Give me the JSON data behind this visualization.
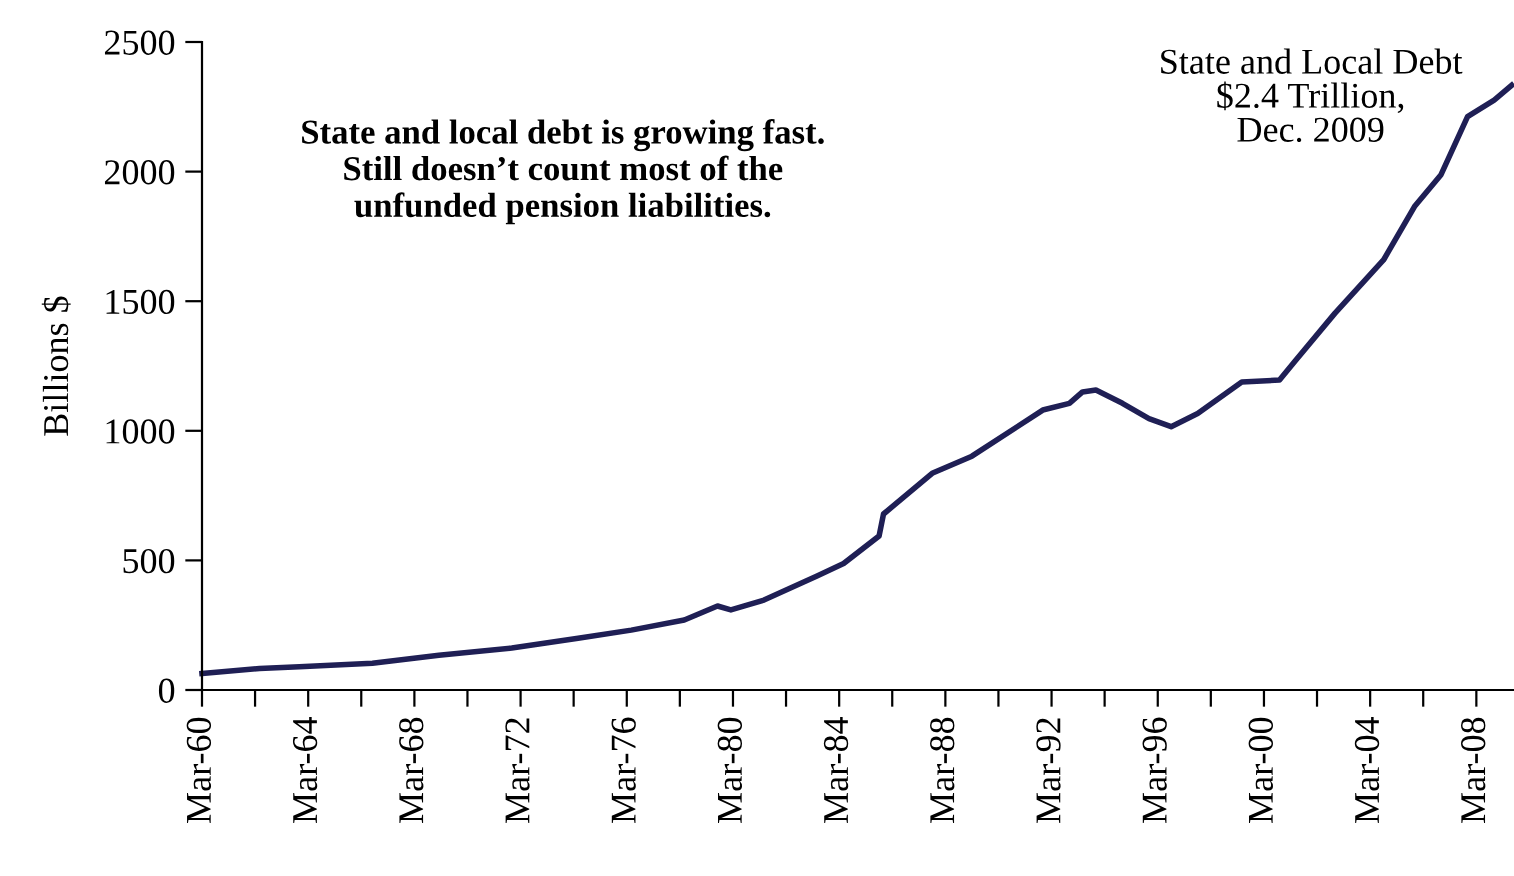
{
  "chart_data": {
    "type": "line",
    "ylabel": "Billions $",
    "annotations": [
      "State and local debt is growing fast.\nStill doesn’t count most of the\nunfunded pension liabilities.",
      "State and Local Debt\n$2.4 Trillion,\nDec. 2009"
    ],
    "x": [
      "1960-03",
      "1962-05",
      "1963-11",
      "1966-08",
      "1969-02",
      "1971-11",
      "1974-05",
      "1976-05",
      "1978-05",
      "1979-08",
      "1980-02",
      "1981-05",
      "1983-05",
      "1984-05",
      "1985-09",
      "1985-11",
      "1987-09",
      "1989-03",
      "1991-11",
      "1992-11",
      "1993-05",
      "1993-11",
      "1994-11",
      "1995-11",
      "1996-09",
      "1997-09",
      "1999-05",
      "2000-10",
      "2001-05",
      "2002-11",
      "2004-09",
      "2005-11",
      "2006-11",
      "2007-11",
      "2008-11",
      "2009-07"
    ],
    "series": [
      {
        "color": "#1f1f55",
        "values": [
          64,
          83,
          90,
          103,
          134,
          162,
          200,
          231,
          270,
          324,
          309,
          347,
          440,
          488,
          594,
          679,
          836,
          902,
          1080,
          1106,
          1150,
          1157,
          1106,
          1047,
          1016,
          1067,
          1188,
          1196,
          1268,
          1453,
          1659,
          1865,
          1988,
          2212,
          2276,
          2333
        ]
      }
    ],
    "xlim": [
      "1960-03",
      "2009-08"
    ],
    "xticks": [
      {
        "value": "1960-03",
        "label": "Mar-60"
      },
      {
        "value": "1962-03",
        "label": null
      },
      {
        "value": "1964-03",
        "label": "Mar-64"
      },
      {
        "value": "1966-03",
        "label": null
      },
      {
        "value": "1968-03",
        "label": "Mar-68"
      },
      {
        "value": "1970-03",
        "label": null
      },
      {
        "value": "1972-03",
        "label": "Mar-72"
      },
      {
        "value": "1974-03",
        "label": null
      },
      {
        "value": "1976-03",
        "label": "Mar-76"
      },
      {
        "value": "1978-03",
        "label": null
      },
      {
        "value": "1980-03",
        "label": "Mar-80"
      },
      {
        "value": "1982-03",
        "label": null
      },
      {
        "value": "1984-03",
        "label": "Mar-84"
      },
      {
        "value": "1986-03",
        "label": null
      },
      {
        "value": "1988-03",
        "label": "Mar-88"
      },
      {
        "value": "1990-03",
        "label": null
      },
      {
        "value": "1992-03",
        "label": "Mar-92"
      },
      {
        "value": "1994-03",
        "label": null
      },
      {
        "value": "1996-03",
        "label": "Mar-96"
      },
      {
        "value": "1998-03",
        "label": null
      },
      {
        "value": "2000-03",
        "label": "Mar-00"
      },
      {
        "value": "2002-03",
        "label": null
      },
      {
        "value": "2004-03",
        "label": "Mar-04"
      },
      {
        "value": "2006-03",
        "label": null
      },
      {
        "value": "2008-03",
        "label": "Mar-08"
      }
    ],
    "ylim": [
      0,
      2500
    ],
    "yticks": [
      0,
      500,
      1000,
      1500,
      2000,
      2500
    ],
    "grid": false,
    "legend": false,
    "marker": "none",
    "line_style": "solid"
  }
}
